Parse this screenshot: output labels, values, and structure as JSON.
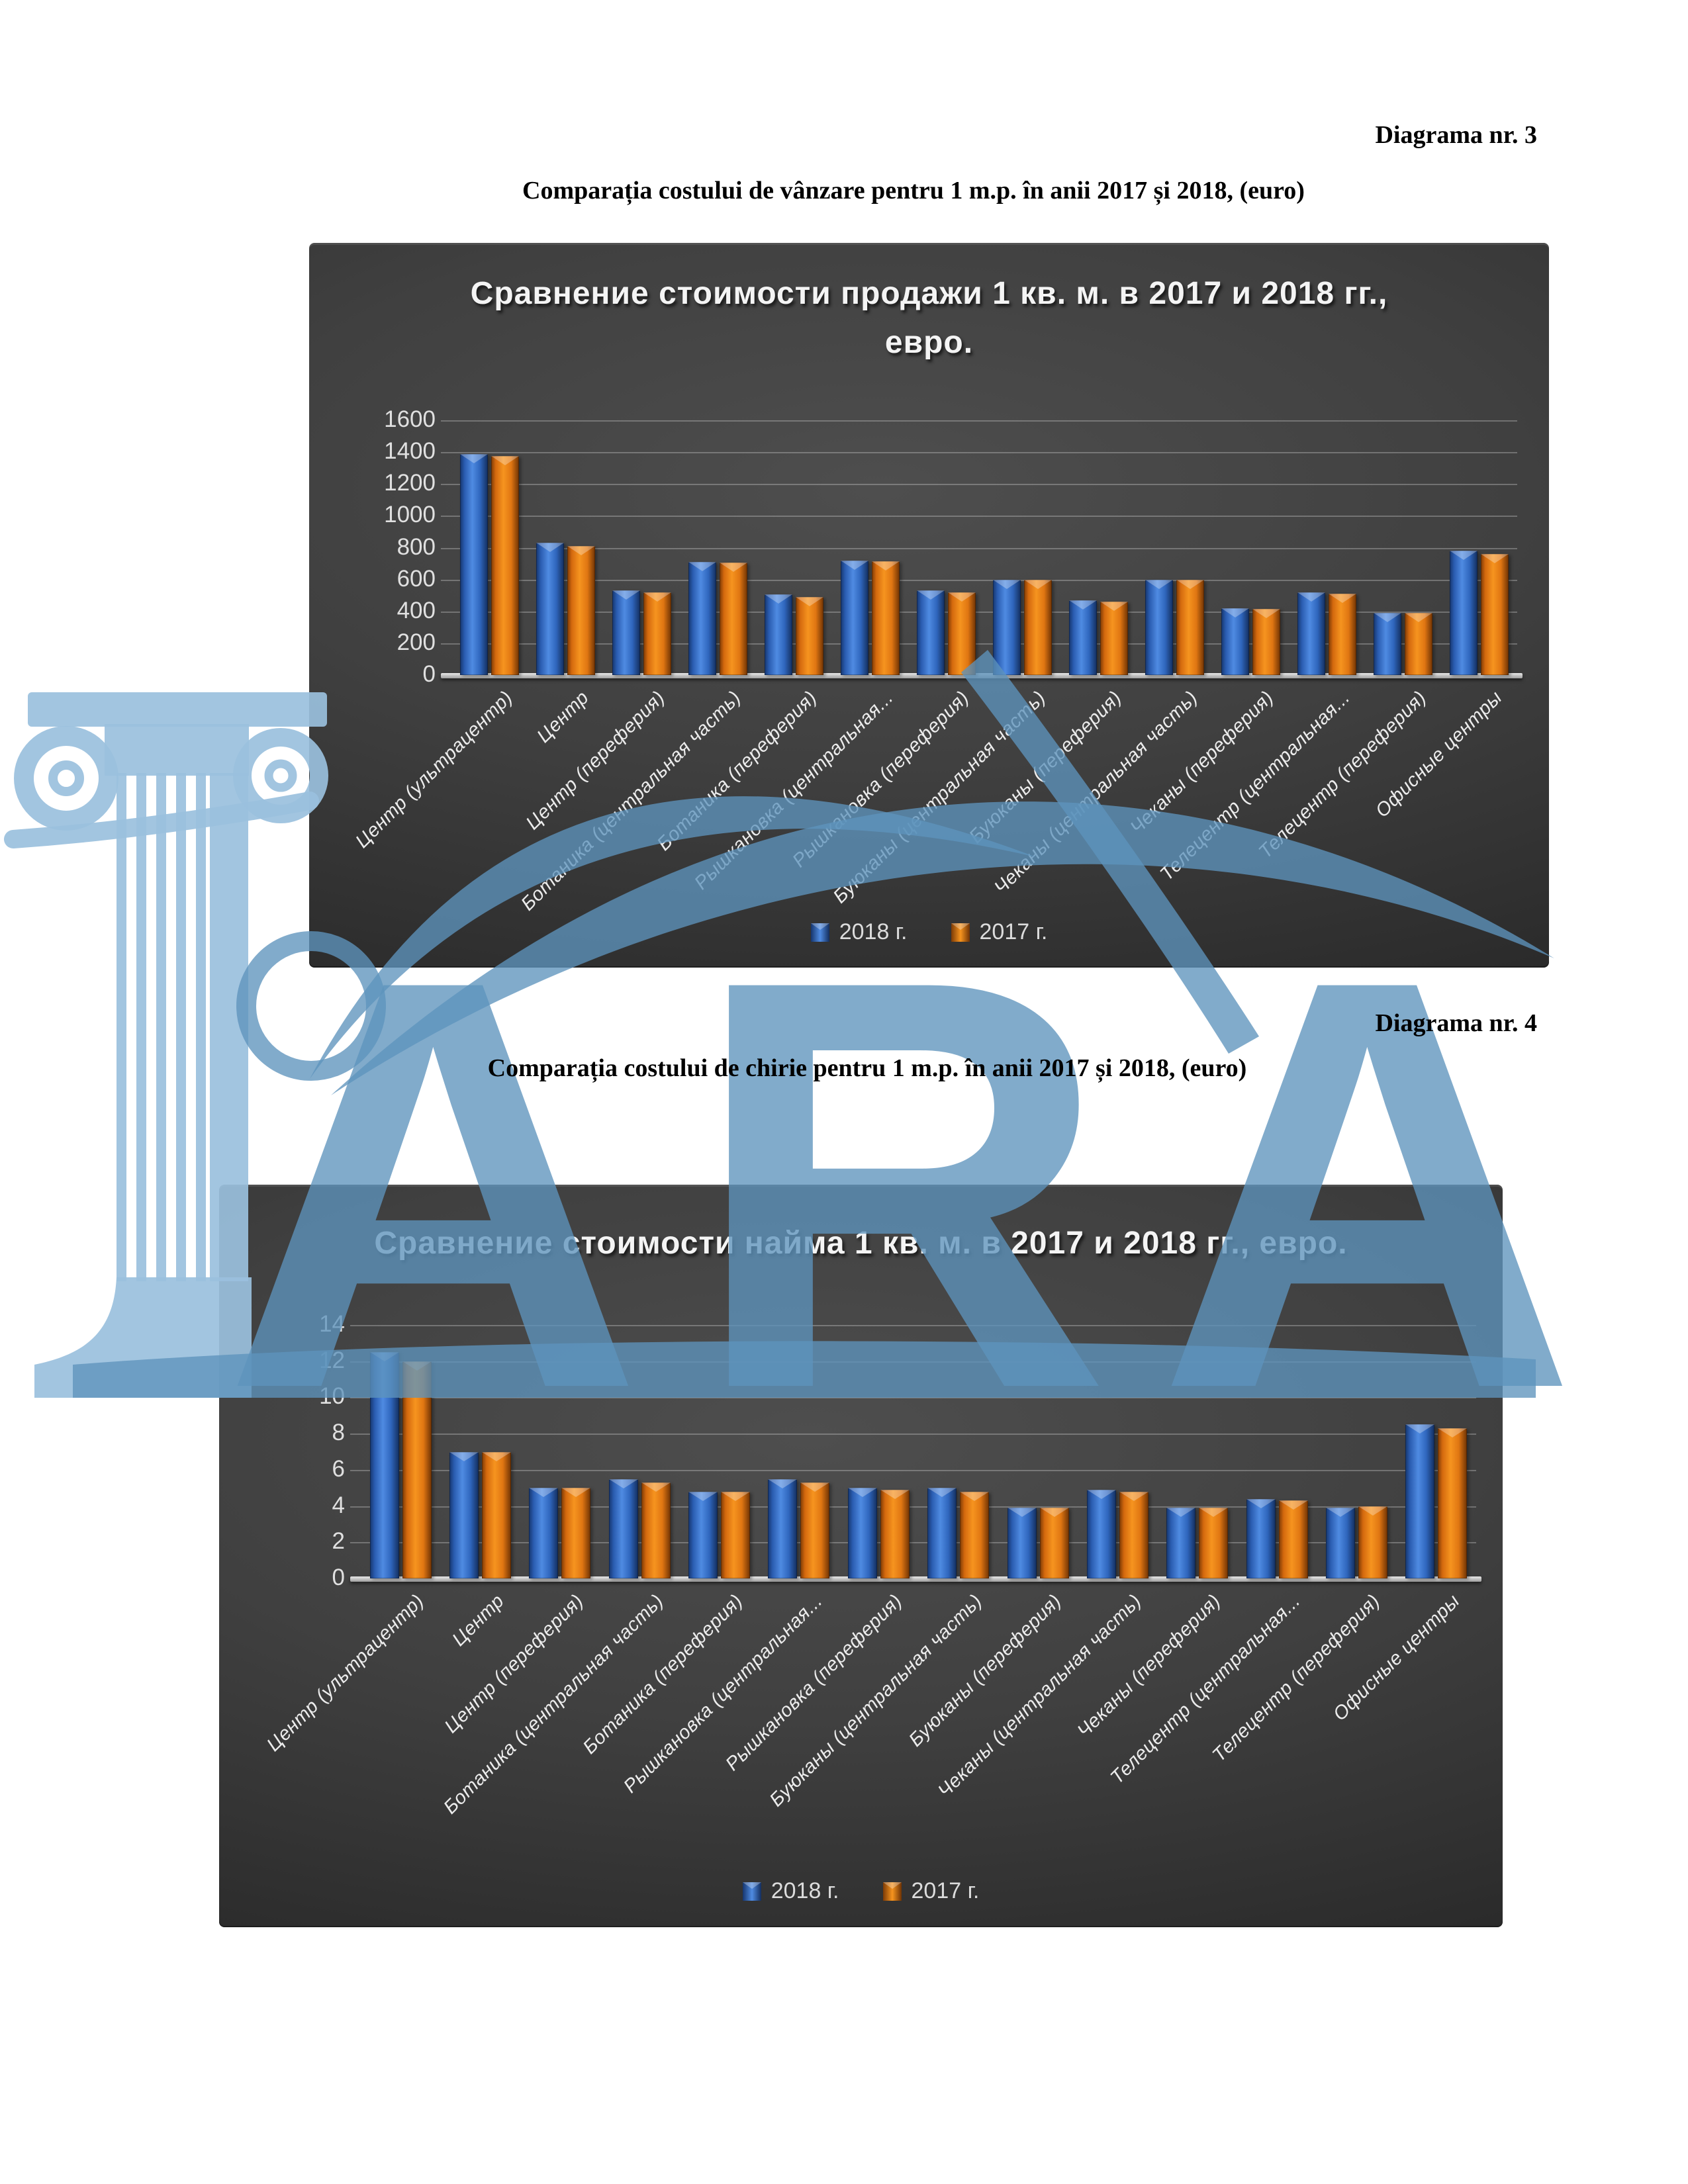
{
  "page": {
    "header1": "Diagrama nr. 3",
    "doc_title1": "Comparația costului de vânzare pentru 1 m.p. în anii 2017 și 2018, (euro)",
    "header2": "Diagrama nr. 4",
    "doc_title2": "Comparația costului de chirie pentru 1 m.p. în anii 2017 și 2018,  (euro)"
  },
  "watermark": {
    "logo": "lara-ionic-column-logo",
    "letters": "ARA",
    "color": "#5e93bd"
  },
  "chart_data": [
    {
      "type": "bar",
      "title": "Сравнение стоимости продажи 1 кв. м. в 2017 и 2018 гг., евро.",
      "xlabel": "",
      "ylabel": "",
      "ylim": [
        0,
        1600
      ],
      "ytick_step": 200,
      "grid": true,
      "legend_position": "bottom",
      "background": "dark-gray-gradient",
      "categories": [
        "Центр (ультрацентр)",
        "Центр",
        "Центр (переферия)",
        "Ботаника (центральная часть)",
        "Ботаника (переферия)",
        "Рышкановка (центральная...",
        "Рышкановка (переферия)",
        "Буюканы (центральная часть)",
        "Буюканы (переферия)",
        "Чеканы (центральная часть)",
        "Чеканы (переферия)",
        "Телецентр (центральная...",
        "Телецентр (переферия)",
        "Офисные центры"
      ],
      "series": [
        {
          "name": "2018 г.",
          "color": "#2d62b8",
          "values": [
            1390,
            830,
            530,
            710,
            505,
            720,
            530,
            600,
            470,
            600,
            420,
            520,
            390,
            780
          ]
        },
        {
          "name": "2017 г.",
          "color": "#e8791a",
          "values": [
            1375,
            810,
            520,
            705,
            490,
            715,
            520,
            600,
            460,
            600,
            415,
            510,
            390,
            760
          ]
        }
      ]
    },
    {
      "type": "bar",
      "title": "Сравнение стоимости найма 1 кв. м. в 2017 и 2018 гг., евро.",
      "xlabel": "",
      "ylabel": "",
      "ylim": [
        0,
        14
      ],
      "ytick_step": 2,
      "grid": true,
      "legend_position": "bottom",
      "background": "dark-gray-gradient",
      "categories": [
        "Центр (ультрацентр)",
        "Центр",
        "Центр (переферия)",
        "Ботаника (центральная часть)",
        "Ботаника (переферия)",
        "Рышкановка (центральная...",
        "Рышкановка (переферия)",
        "Буюканы (центральная часть)",
        "Буюканы (переферия)",
        "Чеканы (центральная часть)",
        "Чеканы (переферия)",
        "Телецентр (центральная...",
        "Телецентр (переферия)",
        "Офисные центры"
      ],
      "series": [
        {
          "name": "2018 г.",
          "color": "#2d62b8",
          "values": [
            12.5,
            7.0,
            5.0,
            5.5,
            4.8,
            5.5,
            5.0,
            5.0,
            3.9,
            4.9,
            3.9,
            4.4,
            3.9,
            8.5
          ]
        },
        {
          "name": "2017 г.",
          "color": "#e8791a",
          "values": [
            12.0,
            7.0,
            5.0,
            5.3,
            4.8,
            5.3,
            4.9,
            4.8,
            3.9,
            4.8,
            3.9,
            4.3,
            4.0,
            8.3
          ]
        }
      ]
    }
  ]
}
